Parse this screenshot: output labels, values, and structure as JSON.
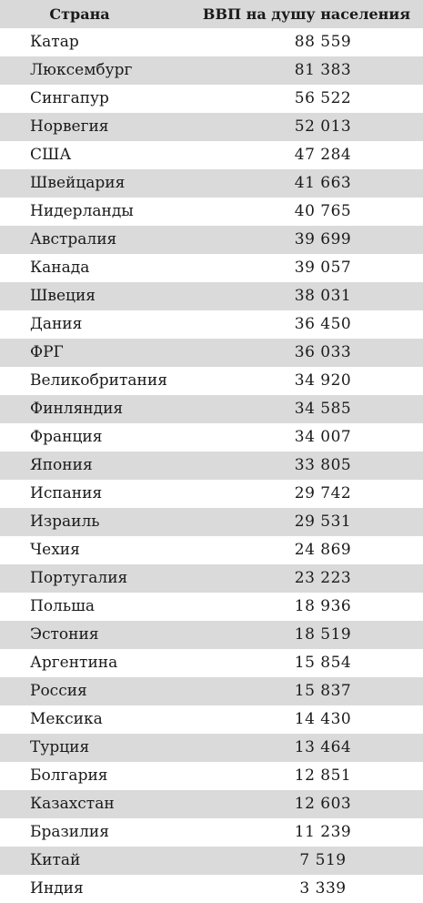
{
  "header": {
    "country": "Страна",
    "gdp": "ВВП на душу населения"
  },
  "rows": [
    {
      "country": "Катар",
      "gdp": "88 559"
    },
    {
      "country": "Люксембург",
      "gdp": "81 383"
    },
    {
      "country": "Сингапур",
      "gdp": "56 522"
    },
    {
      "country": "Норвегия",
      "gdp": "52 013"
    },
    {
      "country": "США",
      "gdp": "47 284"
    },
    {
      "country": "Швейцария",
      "gdp": "41 663"
    },
    {
      "country": "Нидерланды",
      "gdp": "40 765"
    },
    {
      "country": "Австралия",
      "gdp": "39 699"
    },
    {
      "country": "Канада",
      "gdp": "39 057"
    },
    {
      "country": "Швеция",
      "gdp": "38 031"
    },
    {
      "country": "Дания",
      "gdp": "36 450"
    },
    {
      "country": "ФРГ",
      "gdp": "36 033"
    },
    {
      "country": "Великобритания",
      "gdp": "34 920"
    },
    {
      "country": "Финляндия",
      "gdp": "34 585"
    },
    {
      "country": "Франция",
      "gdp": "34 007"
    },
    {
      "country": "Япония",
      "gdp": "33 805"
    },
    {
      "country": "Испания",
      "gdp": "29 742"
    },
    {
      "country": "Израиль",
      "gdp": "29 531"
    },
    {
      "country": "Чехия",
      "gdp": "24 869"
    },
    {
      "country": "Португалия",
      "gdp": "23 223"
    },
    {
      "country": "Польша",
      "gdp": "18 936"
    },
    {
      "country": "Эстония",
      "gdp": "18 519"
    },
    {
      "country": "Аргентина",
      "gdp": "15 854"
    },
    {
      "country": "Россия",
      "gdp": "15 837"
    },
    {
      "country": "Мексика",
      "gdp": "14 430"
    },
    {
      "country": "Турция",
      "gdp": "13 464"
    },
    {
      "country": "Болгария",
      "gdp": "12 851"
    },
    {
      "country": "Казахстан",
      "gdp": "12 603"
    },
    {
      "country": "Бразилия",
      "gdp": "11 239"
    },
    {
      "country": "Китай",
      "gdp": "7 519"
    },
    {
      "country": "Индия",
      "gdp": "3 339"
    }
  ],
  "colors": {
    "stripe": "#dadada",
    "header_bg": "#d9d9d9",
    "text": "#1a1a1a",
    "background": "#ffffff"
  }
}
